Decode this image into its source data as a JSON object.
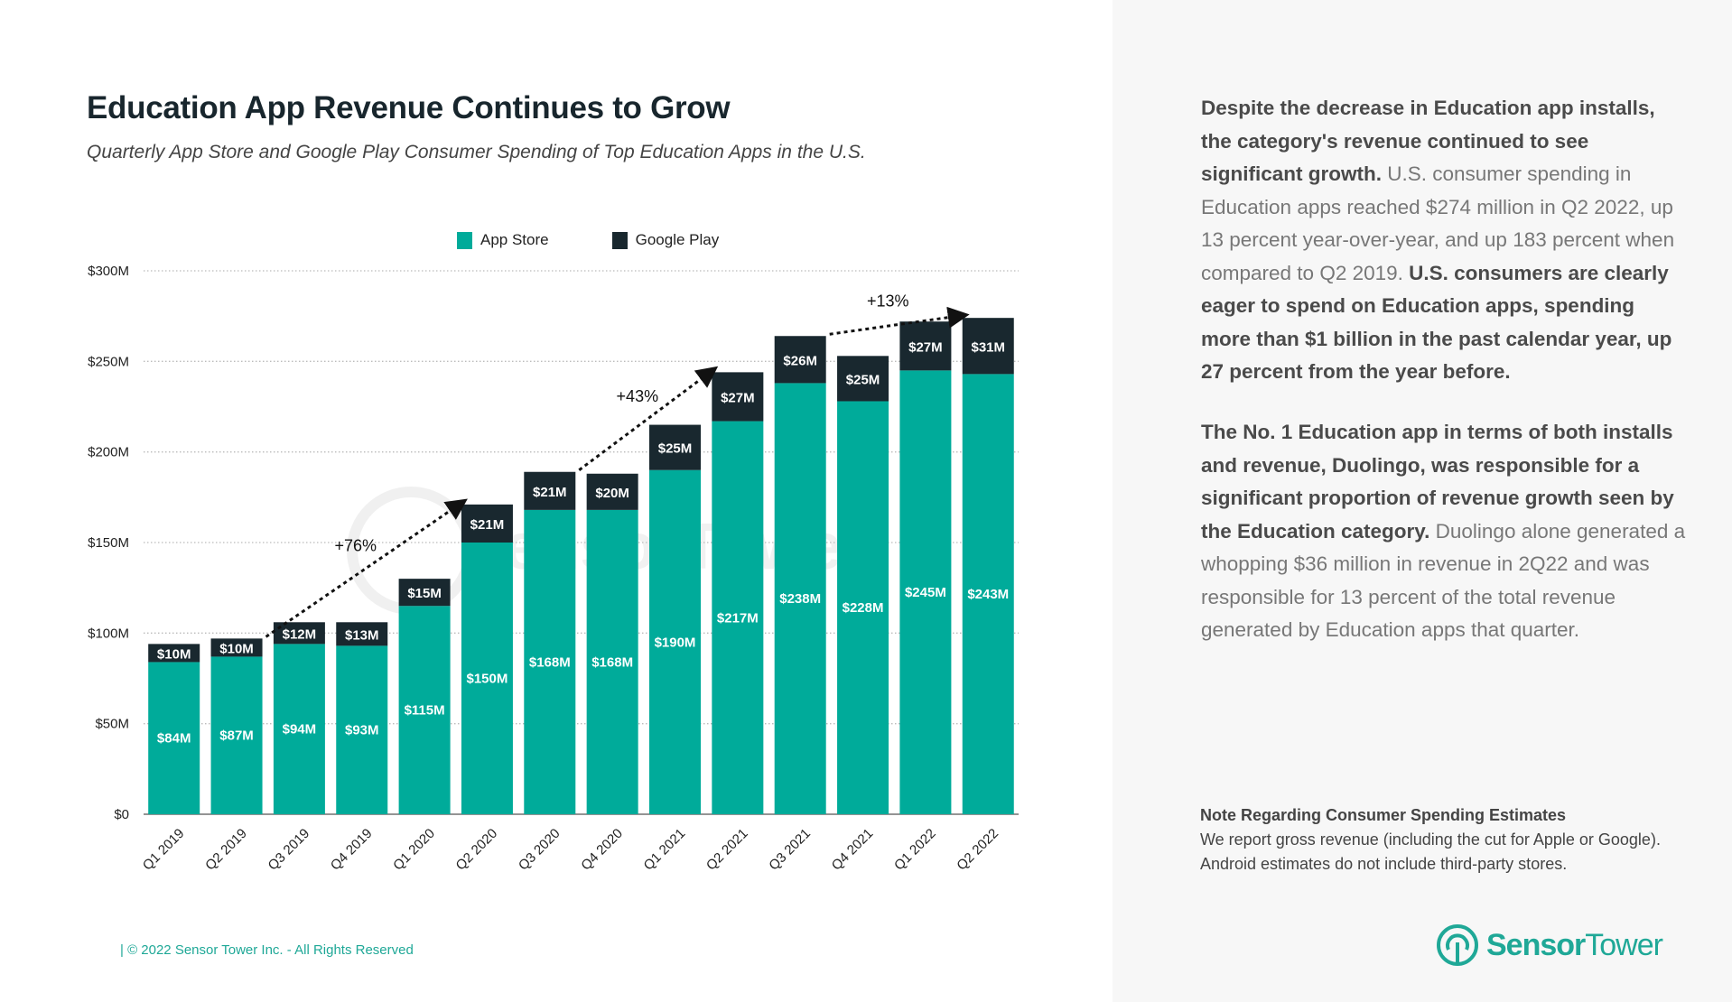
{
  "header": {
    "title": "Education App Revenue Continues to Grow",
    "subtitle": "Quarterly App Store and Google Play Consumer Spending of Top Education Apps in the U.S."
  },
  "colors": {
    "app_store": "#00ab9a",
    "google_play": "#19282f",
    "accent": "#1fa897",
    "panel_bg": "#f7f7f7"
  },
  "chart_data": {
    "type": "bar",
    "stacked": true,
    "title": "Education App Revenue Continues to Grow",
    "categories": [
      "Q1 2019",
      "Q2 2019",
      "Q3 2019",
      "Q4 2019",
      "Q1 2020",
      "Q2 2020",
      "Q3 2020",
      "Q4 2020",
      "Q1 2021",
      "Q2 2021",
      "Q3 2021",
      "Q4 2021",
      "Q1 2022",
      "Q2 2022"
    ],
    "series": [
      {
        "name": "App Store",
        "values": [
          84,
          87,
          94,
          93,
          115,
          150,
          168,
          168,
          190,
          217,
          238,
          228,
          245,
          243
        ],
        "labels": [
          "$84M",
          "$87M",
          "$94M",
          "$93M",
          "$115M",
          "$150M",
          "$168M",
          "$168M",
          "$190M",
          "$217M",
          "$238M",
          "$228M",
          "$245M",
          "$243M"
        ]
      },
      {
        "name": "Google Play",
        "values": [
          10,
          10,
          12,
          13,
          15,
          21,
          21,
          20,
          25,
          27,
          26,
          25,
          27,
          31
        ],
        "labels": [
          "$10M",
          "$10M",
          "$12M",
          "$13M",
          "$15M",
          "$21M",
          "$21M",
          "$20M",
          "$25M",
          "$27M",
          "$26M",
          "$25M",
          "$27M",
          "$31M"
        ]
      }
    ],
    "ylim": [
      0,
      300
    ],
    "yticks": [
      0,
      50,
      100,
      150,
      200,
      250,
      300
    ],
    "ytick_labels": [
      "$0",
      "$50M",
      "$100M",
      "$150M",
      "$200M",
      "$250M",
      "$300M"
    ],
    "grid": true,
    "legend": "top-center",
    "annotations": [
      {
        "text": "+76%",
        "from": "Q2 2019",
        "to": "Q2 2020"
      },
      {
        "text": "+43%",
        "from": "Q3 2020",
        "to": "Q2 2021"
      },
      {
        "text": "+13%",
        "from": "Q3 2021",
        "to": "Q2 2022"
      }
    ]
  },
  "panel": {
    "p1_bold1": "Despite the decrease in Education app installs, the category's revenue continued to see significant growth.",
    "p1_light": " U.S. consumer spending in Education apps reached $274 million in Q2 2022, up 13 percent year-over-year, and up 183 percent when compared to Q2 2019. ",
    "p1_bold2": "U.S. consumers are clearly eager to spend on Education apps, spending more than $1 billion in the past calendar year, up 27 percent from the year before.",
    "p2_bold": "The No. 1 Education app in terms of both installs and revenue, Duolingo, was responsible for a significant proportion of revenue growth seen by the Education category.",
    "p2_light": " Duolingo alone generated a whopping $36 million in revenue in 2Q22 and was responsible for 13 percent of the total revenue generated by Education apps that quarter.",
    "note_title": "Note Regarding Consumer Spending Estimates",
    "note_body": "We report gross revenue (including the cut for Apple or Google). Android estimates do not include third-party stores."
  },
  "footer": {
    "copyright": "|  © 2022 Sensor Tower Inc. - All Rights Reserved"
  },
  "logo": {
    "text": "SensorTower",
    "icon": "sensor-tower-logo-icon"
  }
}
